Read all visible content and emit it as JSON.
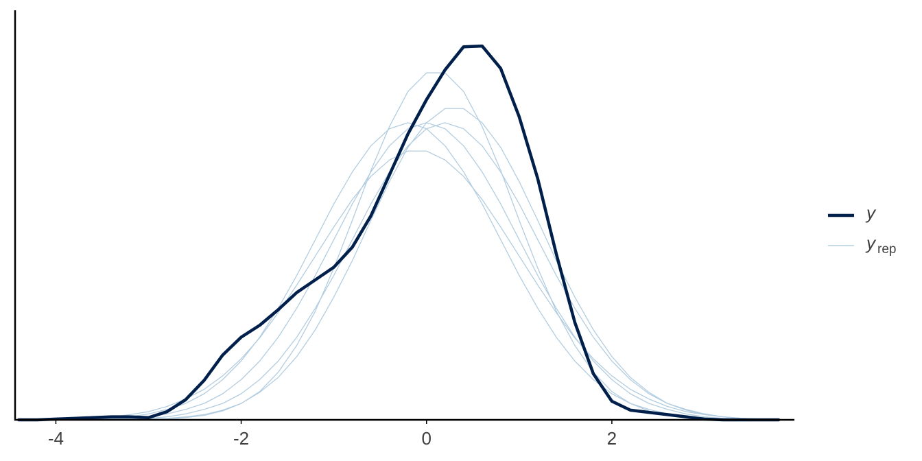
{
  "chart_data": {
    "type": "density",
    "x": [
      -4.4,
      -4.2,
      -4.0,
      -3.8,
      -3.6,
      -3.4,
      -3.2,
      -3.0,
      -2.8,
      -2.6,
      -2.4,
      -2.2,
      -2.0,
      -1.8,
      -1.6,
      -1.4,
      -1.2,
      -1.0,
      -0.8,
      -0.6,
      -0.4,
      -0.2,
      0,
      0.2,
      0.4,
      0.6,
      0.8,
      1.0,
      1.2,
      1.4,
      1.6,
      1.8,
      2.0,
      2.2,
      2.4,
      2.6,
      2.8,
      3.0,
      3.2,
      3.4,
      3.6,
      3.8
    ],
    "series": [
      {
        "name": "y",
        "color": "#011f4b",
        "values": [
          0,
          0,
          0.001,
          0.002,
          0.003,
          0.004,
          0.004,
          0.003,
          0.011,
          0.027,
          0.053,
          0.087,
          0.111,
          0.127,
          0.148,
          0.171,
          0.188,
          0.205,
          0.232,
          0.274,
          0.329,
          0.384,
          0.43,
          0.47,
          0.501,
          0.502,
          0.472,
          0.407,
          0.324,
          0.223,
          0.131,
          0.062,
          0.025,
          0.013,
          0.01,
          0.007,
          0.004,
          0.001,
          0,
          0,
          0,
          0
        ]
      }
    ],
    "replicates": {
      "name": "y",
      "subscript": "rep",
      "color": "#b3cde0",
      "values": [
        [
          0,
          0,
          0,
          0,
          0.001,
          0.001,
          0.002,
          0.004,
          0.008,
          0.014,
          0.022,
          0.035,
          0.054,
          0.079,
          0.111,
          0.15,
          0.194,
          0.242,
          0.29,
          0.333,
          0.368,
          0.391,
          0.399,
          0.391,
          0.368,
          0.333,
          0.29,
          0.242,
          0.194,
          0.15,
          0.111,
          0.079,
          0.054,
          0.035,
          0.022,
          0.014,
          0.008,
          0.004,
          0.002,
          0.001,
          0.001,
          0
        ],
        [
          0,
          0,
          0,
          0,
          0,
          0.001,
          0.001,
          0.002,
          0.004,
          0.008,
          0.014,
          0.022,
          0.035,
          0.054,
          0.079,
          0.111,
          0.15,
          0.194,
          0.242,
          0.29,
          0.333,
          0.368,
          0.391,
          0.399,
          0.391,
          0.368,
          0.333,
          0.29,
          0.242,
          0.194,
          0.15,
          0.111,
          0.079,
          0.054,
          0.035,
          0.022,
          0.014,
          0.008,
          0.004,
          0.002,
          0.001,
          0.001
        ],
        [
          0,
          0,
          0,
          0.001,
          0.001,
          0.002,
          0.004,
          0.008,
          0.014,
          0.022,
          0.035,
          0.054,
          0.079,
          0.111,
          0.15,
          0.194,
          0.242,
          0.29,
          0.333,
          0.368,
          0.391,
          0.399,
          0.391,
          0.368,
          0.333,
          0.29,
          0.242,
          0.194,
          0.15,
          0.111,
          0.079,
          0.054,
          0.035,
          0.022,
          0.014,
          0.008,
          0.004,
          0.002,
          0.001,
          0.001,
          0,
          0
        ],
        [
          0,
          0,
          0,
          0,
          0,
          0,
          0,
          0.001,
          0.001,
          0.003,
          0.006,
          0.012,
          0.022,
          0.038,
          0.064,
          0.1,
          0.146,
          0.204,
          0.268,
          0.335,
          0.394,
          0.441,
          0.466,
          0.466,
          0.441,
          0.394,
          0.335,
          0.268,
          0.204,
          0.146,
          0.1,
          0.064,
          0.038,
          0.022,
          0.012,
          0.006,
          0.003,
          0.001,
          0.001,
          0,
          0,
          0
        ],
        [
          0,
          0,
          0.001,
          0.001,
          0.002,
          0.004,
          0.007,
          0.011,
          0.018,
          0.028,
          0.041,
          0.059,
          0.082,
          0.11,
          0.144,
          0.181,
          0.22,
          0.259,
          0.296,
          0.327,
          0.349,
          0.361,
          0.361,
          0.349,
          0.327,
          0.296,
          0.259,
          0.22,
          0.181,
          0.144,
          0.11,
          0.082,
          0.059,
          0.041,
          0.028,
          0.018,
          0.011,
          0.007,
          0.004,
          0.002,
          0.001,
          0.001
        ],
        [
          0,
          0,
          0,
          0,
          0,
          0,
          0.001,
          0.001,
          0.002,
          0.004,
          0.007,
          0.013,
          0.022,
          0.037,
          0.057,
          0.085,
          0.121,
          0.165,
          0.214,
          0.268,
          0.32,
          0.366,
          0.399,
          0.418,
          0.418,
          0.399,
          0.366,
          0.32,
          0.268,
          0.214,
          0.165,
          0.121,
          0.085,
          0.057,
          0.037,
          0.022,
          0.013,
          0.007,
          0.004,
          0.002,
          0.001,
          0.001
        ]
      ]
    },
    "xlim": [
      -4.44,
      3.97
    ],
    "ylim": [
      0,
      0.55
    ],
    "xticks": [
      -4,
      -2,
      0,
      2
    ]
  }
}
